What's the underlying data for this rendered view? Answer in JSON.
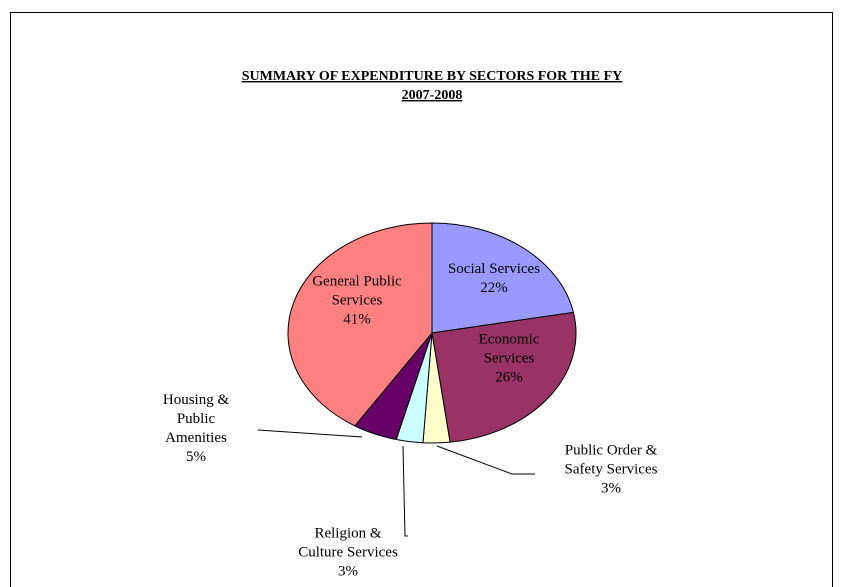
{
  "chart_data": {
    "type": "pie",
    "title_lines": [
      "SUMMARY OF EXPENDITURE BY SECTORS FOR THE FY",
      "2007-2008"
    ],
    "slices": [
      {
        "label_lines": [
          "Social Services",
          "22%"
        ],
        "value": 22,
        "color": "#9999ff"
      },
      {
        "label_lines": [
          "Economic",
          "Services",
          "26%"
        ],
        "value": 26,
        "color": "#993366"
      },
      {
        "label_lines": [
          "Public Order &",
          "Safety Services",
          "3%"
        ],
        "value": 3,
        "color": "#ffffcc"
      },
      {
        "label_lines": [
          "Religion  &",
          "Culture Services",
          "3%"
        ],
        "value": 3,
        "color": "#ccffff"
      },
      {
        "label_lines": [
          "Housing &",
          "Public",
          "Amenities",
          "5%"
        ],
        "value": 5,
        "color": "#660066"
      },
      {
        "label_lines": [
          "General Public",
          "Services",
          "41%"
        ],
        "value": 41,
        "color": "#ff8080"
      }
    ],
    "legend": "none"
  }
}
